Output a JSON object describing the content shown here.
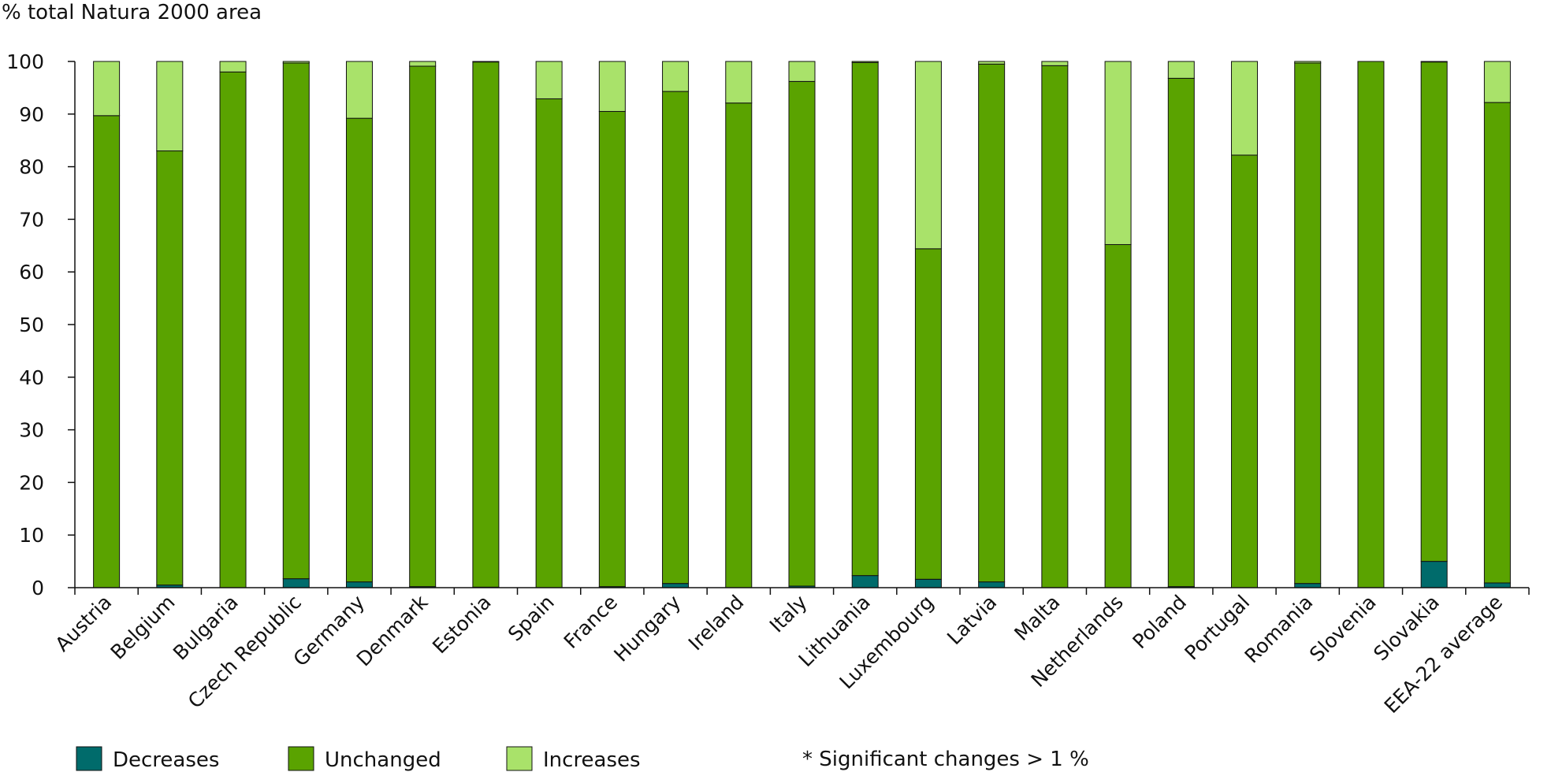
{
  "chart_data": {
    "type": "bar",
    "stacked": true,
    "title": "",
    "ylabel": "% total Natura 2000 area",
    "xlabel": "",
    "ylim": [
      0,
      100
    ],
    "yticks": [
      0,
      10,
      20,
      30,
      40,
      50,
      60,
      70,
      80,
      90,
      100
    ],
    "grid": false,
    "legend_position": "bottom",
    "footnote": "* Significant changes > 1 %",
    "categories": [
      "Austria",
      "Belgium",
      "Bulgaria",
      "Czech Republic",
      "Germany",
      "Denmark",
      "Estonia",
      "Spain",
      "France",
      "Hungary",
      "Ireland",
      "Italy",
      "Lithuania",
      "Luxembourg",
      "Latvia",
      "Malta",
      "Netherlands",
      "Poland",
      "Portugal",
      "Romania",
      "Slovenia",
      "Slovakia",
      "EEA-22 average"
    ],
    "series": [
      {
        "name": "Decreases",
        "color": "#006b6b",
        "values": [
          0.0,
          0.5,
          0.0,
          1.7,
          1.1,
          0.2,
          0.1,
          0.0,
          0.2,
          0.8,
          0.0,
          0.3,
          2.3,
          1.6,
          1.1,
          0.0,
          0.0,
          0.2,
          0.0,
          0.8,
          0.0,
          5.0,
          0.9
        ]
      },
      {
        "name": "Unchanged",
        "color": "#5aa300",
        "values": [
          89.7,
          82.5,
          98.0,
          98.0,
          88.1,
          98.9,
          99.8,
          92.9,
          90.3,
          93.5,
          92.1,
          95.9,
          97.5,
          62.8,
          98.4,
          99.2,
          65.2,
          96.6,
          82.2,
          98.9,
          100.0,
          94.9,
          91.3
        ]
      },
      {
        "name": "Increases",
        "color": "#a9e26a",
        "values": [
          10.3,
          17.0,
          2.0,
          0.3,
          10.8,
          0.9,
          0.1,
          7.1,
          9.5,
          5.7,
          7.9,
          3.8,
          0.2,
          35.6,
          0.5,
          0.8,
          34.8,
          3.2,
          17.8,
          0.3,
          0.0,
          0.1,
          7.8
        ]
      }
    ]
  }
}
